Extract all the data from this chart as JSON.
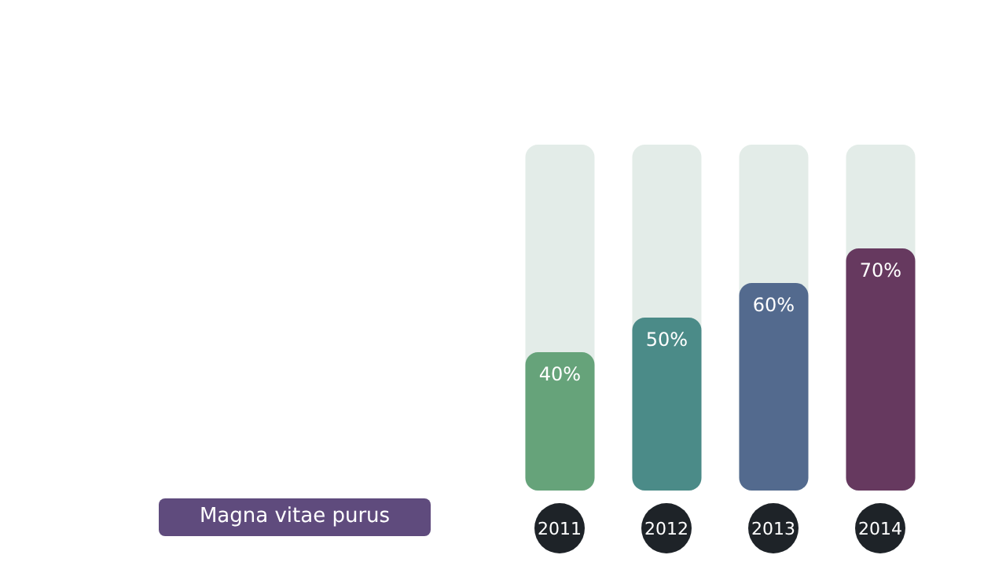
{
  "chart_data": {
    "type": "bar",
    "categories": [
      "2011",
      "2012",
      "2013",
      "2014"
    ],
    "values": [
      40,
      50,
      60,
      70
    ],
    "colors": [
      "#66a37a",
      "#4b8b88",
      "#536a8e",
      "#66395f"
    ],
    "value_labels": [
      "40%",
      "50%",
      "60%",
      "70%"
    ],
    "ylim": [
      0,
      100
    ],
    "tick_labels": "x",
    "annotations": [
      "Magna vitae purus"
    ]
  }
}
